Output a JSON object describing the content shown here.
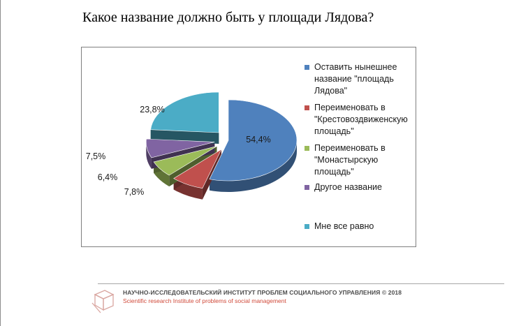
{
  "page": {
    "title": "Какое название должно быть у площади Лядова?"
  },
  "chart_data": {
    "type": "pie",
    "title": "Какое название должно быть у площади Лядова?",
    "unit": "%",
    "slices": [
      {
        "label": "Оставить нынешнее название \"площадь Лядова\"",
        "value": 54.4,
        "value_label": "54,4%",
        "color": "#4f81bd",
        "exploded": false
      },
      {
        "label": "Переименовать в \"Крестовоздвиженскую площадь\"",
        "value": 7.8,
        "value_label": "7,8%",
        "color": "#c0504d",
        "exploded": true
      },
      {
        "label": "Переименовать в \"Монастырскую площадь\"",
        "value": 6.4,
        "value_label": "6,4%",
        "color": "#9bbb59",
        "exploded": true
      },
      {
        "label": "Другое название",
        "value": 7.5,
        "value_label": "7,5%",
        "color": "#8064a2",
        "exploded": true
      },
      {
        "label": "Мне все равно",
        "value": 23.8,
        "value_label": "23,8%",
        "color": "#4bacc6",
        "exploded": true
      }
    ],
    "legend_position": "right",
    "style": "3d-exploded-pie"
  },
  "footer": {
    "org": "НАУЧНО-ИССЛЕДОВАТЕЛЬСКИЙ ИНСТИТУТ ПРОБЛЕМ СОЦИАЛЬНОГО УПРАВЛЕНИЯ",
    "year": "© 2018",
    "subtitle": "Scientific research Institute of problems of social management",
    "logo_icon": "cube-logo-icon"
  }
}
